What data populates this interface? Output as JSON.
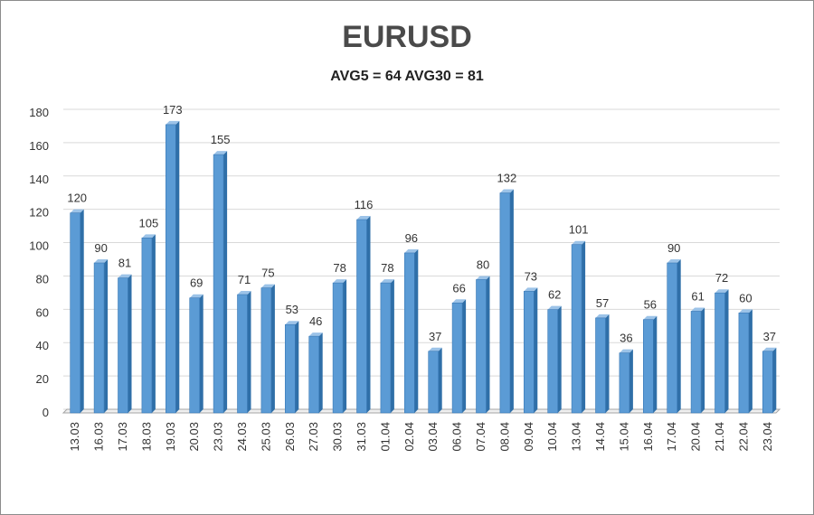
{
  "chart_data": {
    "type": "bar",
    "title": "EURUSD",
    "subtitle": "AVG5 = 64 AVG30 = 81",
    "xlabel": "",
    "ylabel": "",
    "ylim": [
      0,
      180
    ],
    "yticks": [
      0,
      20,
      40,
      60,
      80,
      100,
      120,
      140,
      160,
      180
    ],
    "grid": true,
    "legend": "none",
    "colors": {
      "bar_front": "#5b9bd5",
      "bar_side": "#2f6fa8",
      "bar_top": "#9cc3e8",
      "grid": "#d9d9d9",
      "axis": "#a6a6a6"
    },
    "categories": [
      "13.03",
      "16.03",
      "17.03",
      "18.03",
      "19.03",
      "20.03",
      "23.03",
      "24.03",
      "25.03",
      "26.03",
      "27.03",
      "30.03",
      "31.03",
      "01.04",
      "02.04",
      "03.04",
      "06.04",
      "07.04",
      "08.04",
      "09.04",
      "10.04",
      "13.04",
      "14.04",
      "15.04",
      "16.04",
      "17.04",
      "20.04",
      "21.04",
      "22.04",
      "23.04"
    ],
    "values": [
      120,
      90,
      81,
      105,
      173,
      69,
      155,
      71,
      75,
      53,
      46,
      78,
      116,
      78,
      96,
      37,
      66,
      80,
      132,
      73,
      62,
      101,
      57,
      36,
      56,
      90,
      61,
      72,
      60,
      37
    ]
  }
}
